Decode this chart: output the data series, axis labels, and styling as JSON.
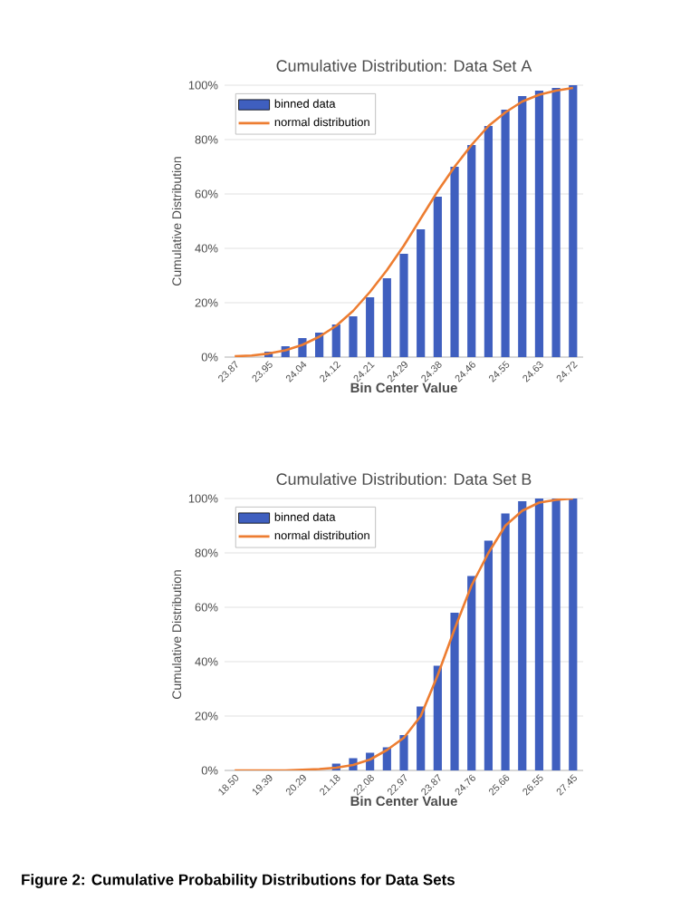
{
  "chart_data": [
    {
      "type": "bar",
      "title": "Cumulative Distribution: Data Set A",
      "xlabel": "Bin Center Value",
      "ylabel": "Cumulative Distribution",
      "categories": [
        "23.87",
        null,
        "23.95",
        null,
        "24.04",
        null,
        "24.12",
        null,
        "24.21",
        null,
        "24.29",
        null,
        "24.38",
        null,
        "24.46",
        null,
        "24.55",
        null,
        "24.63",
        null,
        "24.72"
      ],
      "series": [
        {
          "name": "binned data",
          "color": "#3f5fbf",
          "values": [
            0,
            null,
            2,
            4,
            7,
            9,
            12,
            15,
            22,
            29,
            38,
            47,
            59,
            70,
            78,
            85,
            91,
            96,
            98,
            99,
            100
          ]
        },
        {
          "name": "normal distribution",
          "type": "line",
          "color": "#ed7d31",
          "values": [
            0.3,
            0.6,
            1.3,
            2.5,
            4.5,
            7.5,
            11.5,
            17,
            24,
            32,
            41,
            51,
            61,
            70,
            78,
            85,
            90,
            94,
            96.5,
            98,
            99
          ]
        }
      ],
      "ylim": [
        0,
        100
      ],
      "yticks": [
        {
          "value": 0,
          "label": "0%"
        },
        {
          "value": 20,
          "label": "20%"
        },
        {
          "value": 40,
          "label": "40%"
        },
        {
          "value": 60,
          "label": "60%"
        },
        {
          "value": 80,
          "label": "80%"
        },
        {
          "value": 100,
          "label": "100%"
        }
      ],
      "grid": "y",
      "legend": "top left"
    },
    {
      "type": "bar",
      "title": "Cumulative Distribution: Data Set B",
      "xlabel": "Bin Center Value",
      "ylabel": "Cumulative Distribution",
      "categories": [
        "18.50",
        null,
        "19.39",
        null,
        "20.29",
        null,
        "21.18",
        null,
        "22.08",
        null,
        "22.97",
        null,
        "23.87",
        null,
        "24.76",
        null,
        "25.66",
        null,
        "26.55",
        null,
        "27.45"
      ],
      "series": [
        {
          "name": "binned data",
          "color": "#3f5fbf",
          "values": [
            0,
            0,
            0,
            null,
            null,
            null,
            2.5,
            4.5,
            6.5,
            8.5,
            13,
            23.5,
            38.5,
            58,
            71.5,
            84.5,
            94.5,
            99,
            100,
            100,
            100
          ]
        },
        {
          "name": "normal distribution",
          "type": "line",
          "color": "#ed7d31",
          "values": [
            0,
            0,
            0,
            0,
            0.2,
            0.5,
            1,
            2,
            4,
            7.5,
            12,
            20,
            35,
            52,
            68,
            80,
            90,
            95.5,
            98.5,
            99.5,
            100
          ]
        }
      ],
      "ylim": [
        0,
        100
      ],
      "yticks": [
        {
          "value": 0,
          "label": "0%"
        },
        {
          "value": 20,
          "label": "20%"
        },
        {
          "value": 40,
          "label": "40%"
        },
        {
          "value": 60,
          "label": "60%"
        },
        {
          "value": 80,
          "label": "80%"
        },
        {
          "value": 100,
          "label": "100%"
        }
      ],
      "grid": "y",
      "legend": "top left",
      "annotations": [
        "Figure 2: Cumulative Probability Distributions for Data Sets"
      ]
    }
  ]
}
